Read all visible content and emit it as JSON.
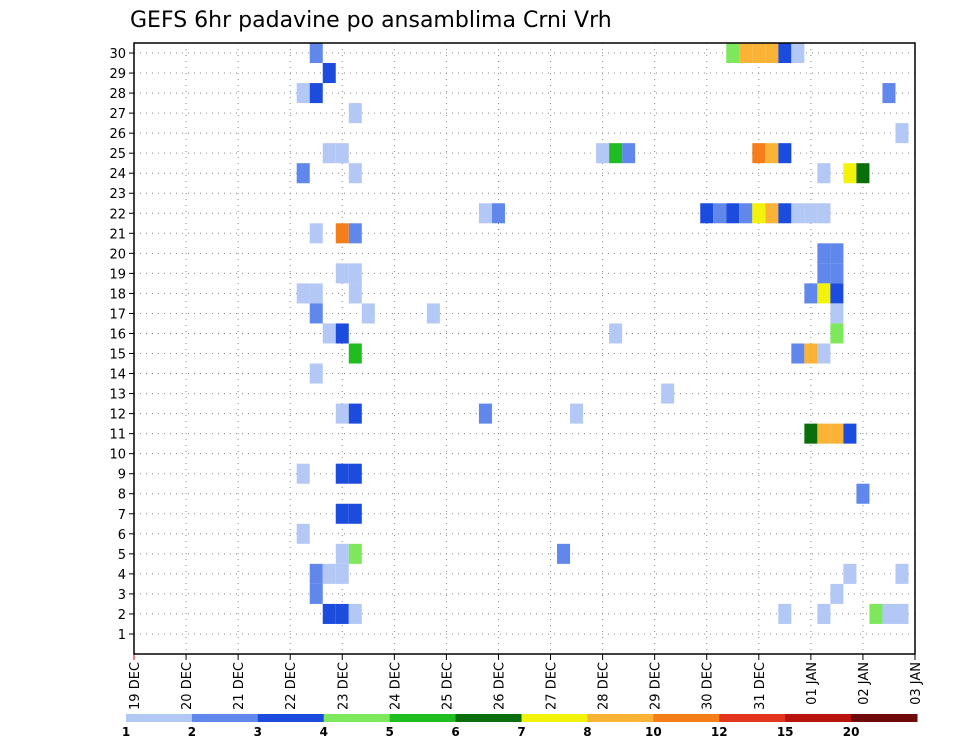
{
  "chart_data": {
    "type": "heatmap",
    "title": "GEFS 6hr padavine po ansamblima Crni Vrh",
    "x_ticks": [
      "19 DEC",
      "20 DEC",
      "21 DEC",
      "22 DEC",
      "23 DEC",
      "24 DEC",
      "25 DEC",
      "26 DEC",
      "27 DEC",
      "28 DEC",
      "29 DEC",
      "30 DEC",
      "31 DEC",
      "01 JAN",
      "02 JAN",
      "03 JAN"
    ],
    "y_ticks": [
      "1",
      "2",
      "3",
      "4",
      "5",
      "6",
      "7",
      "8",
      "9",
      "10",
      "11",
      "12",
      "13",
      "14",
      "15",
      "16",
      "17",
      "18",
      "19",
      "20",
      "21",
      "22",
      "23",
      "24",
      "25",
      "26",
      "27",
      "28",
      "29",
      "30"
    ],
    "grid": true,
    "colorbar": {
      "labels": [
        "1",
        "2",
        "3",
        "4",
        "5",
        "6",
        "7",
        "8",
        "10",
        "12",
        "15",
        "20",
        ""
      ],
      "colors": [
        "#b4c8f5",
        "#5f87ec",
        "#1c4cde",
        "#7ee85c",
        "#1fbd1f",
        "#0a6e0a",
        "#f2f20a",
        "#fbb335",
        "#f57e1a",
        "#e3341e",
        "#b8140f",
        "#6e0a0a"
      ]
    },
    "cells": [
      {
        "m": 30,
        "t": 3.5,
        "c": 2
      },
      {
        "m": 30,
        "t": 11.5,
        "c": 4
      },
      {
        "m": 30,
        "t": 11.75,
        "c": 8
      },
      {
        "m": 30,
        "t": 12.0,
        "c": 8
      },
      {
        "m": 30,
        "t": 12.25,
        "c": 8
      },
      {
        "m": 30,
        "t": 12.5,
        "c": 3
      },
      {
        "m": 30,
        "t": 12.75,
        "c": 1
      },
      {
        "m": 29,
        "t": 3.75,
        "c": 3
      },
      {
        "m": 28,
        "t": 3.25,
        "c": 1
      },
      {
        "m": 28,
        "t": 3.5,
        "c": 3
      },
      {
        "m": 28,
        "t": 14.5,
        "c": 2
      },
      {
        "m": 27,
        "t": 4.25,
        "c": 1
      },
      {
        "m": 26,
        "t": 14.75,
        "c": 1
      },
      {
        "m": 25,
        "t": 3.75,
        "c": 1
      },
      {
        "m": 25,
        "t": 4.0,
        "c": 1
      },
      {
        "m": 25,
        "t": 9.0,
        "c": 1
      },
      {
        "m": 25,
        "t": 9.25,
        "c": 5
      },
      {
        "m": 25,
        "t": 9.5,
        "c": 2
      },
      {
        "m": 25,
        "t": 12.0,
        "c": 9
      },
      {
        "m": 25,
        "t": 12.25,
        "c": 8
      },
      {
        "m": 25,
        "t": 12.5,
        "c": 3
      },
      {
        "m": 24,
        "t": 3.25,
        "c": 2
      },
      {
        "m": 24,
        "t": 4.25,
        "c": 1
      },
      {
        "m": 24,
        "t": 13.25,
        "c": 1
      },
      {
        "m": 24,
        "t": 13.75,
        "c": 7
      },
      {
        "m": 24,
        "t": 14.0,
        "c": 6
      },
      {
        "m": 22,
        "t": 6.75,
        "c": 1
      },
      {
        "m": 22,
        "t": 7.0,
        "c": 2
      },
      {
        "m": 22,
        "t": 11.0,
        "c": 3
      },
      {
        "m": 22,
        "t": 11.25,
        "c": 2
      },
      {
        "m": 22,
        "t": 11.5,
        "c": 3
      },
      {
        "m": 22,
        "t": 11.75,
        "c": 2
      },
      {
        "m": 22,
        "t": 12.0,
        "c": 7
      },
      {
        "m": 22,
        "t": 12.25,
        "c": 8
      },
      {
        "m": 22,
        "t": 12.5,
        "c": 3
      },
      {
        "m": 22,
        "t": 12.75,
        "c": 1
      },
      {
        "m": 22,
        "t": 13.0,
        "c": 1
      },
      {
        "m": 22,
        "t": 13.25,
        "c": 1
      },
      {
        "m": 21,
        "t": 3.5,
        "c": 1
      },
      {
        "m": 21,
        "t": 4.0,
        "c": 9
      },
      {
        "m": 21,
        "t": 4.25,
        "c": 2
      },
      {
        "m": 20,
        "t": 13.25,
        "c": 2
      },
      {
        "m": 20,
        "t": 13.5,
        "c": 2
      },
      {
        "m": 19,
        "t": 4.0,
        "c": 1
      },
      {
        "m": 19,
        "t": 4.25,
        "c": 1
      },
      {
        "m": 19,
        "t": 13.25,
        "c": 2
      },
      {
        "m": 19,
        "t": 13.5,
        "c": 2
      },
      {
        "m": 18,
        "t": 3.25,
        "c": 1
      },
      {
        "m": 18,
        "t": 3.5,
        "c": 1
      },
      {
        "m": 18,
        "t": 4.25,
        "c": 1
      },
      {
        "m": 18,
        "t": 13.0,
        "c": 2
      },
      {
        "m": 18,
        "t": 13.25,
        "c": 7
      },
      {
        "m": 18,
        "t": 13.5,
        "c": 3
      },
      {
        "m": 17,
        "t": 3.5,
        "c": 2
      },
      {
        "m": 17,
        "t": 4.5,
        "c": 1
      },
      {
        "m": 17,
        "t": 5.75,
        "c": 1
      },
      {
        "m": 17,
        "t": 13.5,
        "c": 1
      },
      {
        "m": 16,
        "t": 3.75,
        "c": 1
      },
      {
        "m": 16,
        "t": 4.0,
        "c": 3
      },
      {
        "m": 16,
        "t": 9.25,
        "c": 1
      },
      {
        "m": 16,
        "t": 13.5,
        "c": 4
      },
      {
        "m": 15,
        "t": 4.25,
        "c": 5
      },
      {
        "m": 15,
        "t": 12.75,
        "c": 2
      },
      {
        "m": 15,
        "t": 13.25,
        "c": 1
      },
      {
        "m": 15,
        "t": 13.0,
        "c": 8
      },
      {
        "m": 14,
        "t": 3.5,
        "c": 1
      },
      {
        "m": 13,
        "t": 10.25,
        "c": 1
      },
      {
        "m": 12,
        "t": 4.0,
        "c": 1
      },
      {
        "m": 12,
        "t": 4.25,
        "c": 3
      },
      {
        "m": 12,
        "t": 6.75,
        "c": 2
      },
      {
        "m": 12,
        "t": 8.5,
        "c": 1
      },
      {
        "m": 11,
        "t": 13.0,
        "c": 6
      },
      {
        "m": 11,
        "t": 13.25,
        "c": 8
      },
      {
        "m": 11,
        "t": 13.5,
        "c": 8
      },
      {
        "m": 11,
        "t": 13.75,
        "c": 3
      },
      {
        "m": 9,
        "t": 3.25,
        "c": 1
      },
      {
        "m": 9,
        "t": 4.0,
        "c": 3
      },
      {
        "m": 9,
        "t": 4.25,
        "c": 3
      },
      {
        "m": 8,
        "t": 14.0,
        "c": 2
      },
      {
        "m": 7,
        "t": 4.0,
        "c": 3
      },
      {
        "m": 7,
        "t": 4.25,
        "c": 3
      },
      {
        "m": 6,
        "t": 3.25,
        "c": 1
      },
      {
        "m": 5,
        "t": 4.0,
        "c": 1
      },
      {
        "m": 5,
        "t": 4.25,
        "c": 4
      },
      {
        "m": 5,
        "t": 8.25,
        "c": 2
      },
      {
        "m": 4,
        "t": 3.5,
        "c": 2
      },
      {
        "m": 4,
        "t": 3.75,
        "c": 1
      },
      {
        "m": 4,
        "t": 4.0,
        "c": 1
      },
      {
        "m": 4,
        "t": 13.75,
        "c": 1
      },
      {
        "m": 4,
        "t": 14.75,
        "c": 1
      },
      {
        "m": 3,
        "t": 3.5,
        "c": 2
      },
      {
        "m": 3,
        "t": 13.5,
        "c": 1
      },
      {
        "m": 2,
        "t": 3.75,
        "c": 3
      },
      {
        "m": 2,
        "t": 4.0,
        "c": 3
      },
      {
        "m": 2,
        "t": 4.25,
        "c": 1
      },
      {
        "m": 2,
        "t": 12.5,
        "c": 1
      },
      {
        "m": 2,
        "t": 13.25,
        "c": 1
      },
      {
        "m": 2,
        "t": 14.25,
        "c": 4
      },
      {
        "m": 2,
        "t": 14.5,
        "c": 1
      },
      {
        "m": 2,
        "t": 14.75,
        "c": 1
      }
    ]
  }
}
